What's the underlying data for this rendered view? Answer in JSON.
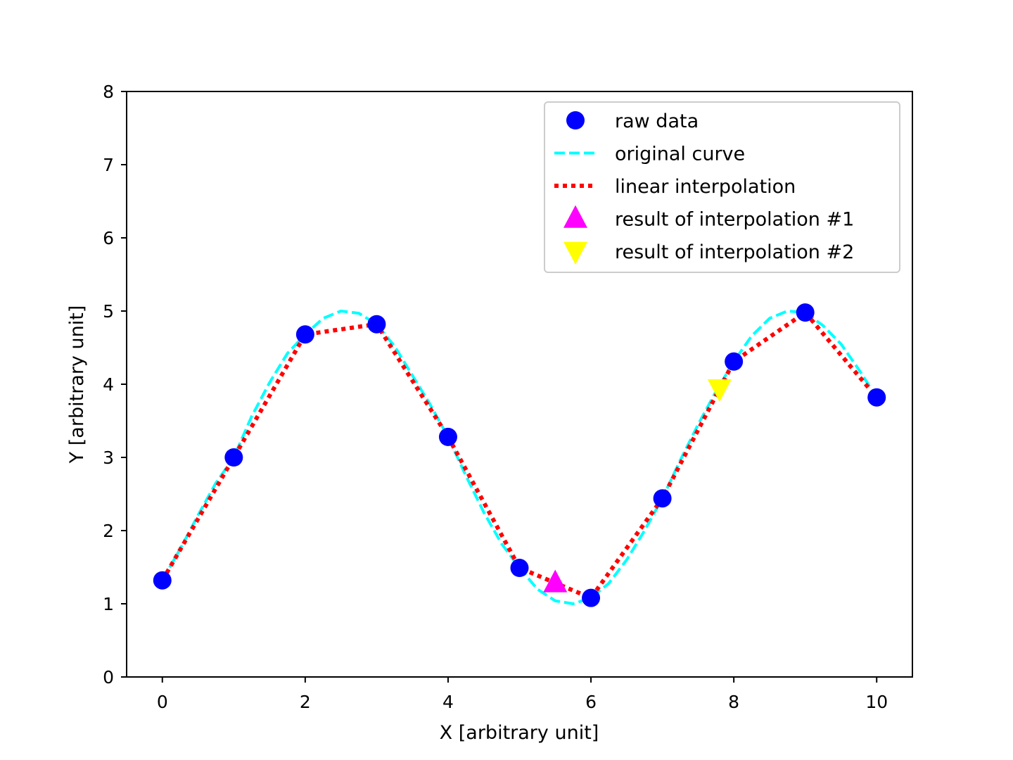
{
  "chart_data": {
    "type": "line",
    "title": "",
    "xlabel": "X [arbitrary unit]",
    "ylabel": "Y [arbitrary unit]",
    "xlim": [
      -0.5,
      10.5
    ],
    "ylim": [
      0,
      8
    ],
    "x_ticks": [
      0,
      2,
      4,
      6,
      8,
      10
    ],
    "y_ticks": [
      0,
      1,
      2,
      3,
      4,
      5,
      6,
      7,
      8
    ],
    "grid": false,
    "legend_position": "top-right",
    "series": [
      {
        "name": "raw data",
        "style": "markers",
        "marker": "circle",
        "color": "#0000ff",
        "x": [
          0,
          1,
          2,
          3,
          4,
          5,
          6,
          7,
          8,
          9,
          10
        ],
        "y": [
          1.32,
          3.0,
          4.68,
          4.82,
          3.28,
          1.49,
          1.08,
          2.44,
          4.31,
          4.98,
          3.82
        ]
      },
      {
        "name": "original curve",
        "style": "dashed-line",
        "color": "#00ffff",
        "function": "3 + 2*sin(1.7*(x-2.55)+pi/2)... sampled",
        "x": [
          0,
          0.25,
          0.5,
          0.75,
          1,
          1.25,
          1.5,
          1.75,
          2,
          2.25,
          2.5,
          2.75,
          3,
          3.25,
          3.5,
          3.75,
          4,
          4.25,
          4.5,
          4.75,
          5,
          5.25,
          5.5,
          5.75,
          6,
          6.25,
          6.5,
          6.75,
          7,
          7.25,
          7.5,
          7.75,
          8,
          8.25,
          8.5,
          8.75,
          9,
          9.25,
          9.5,
          9.75,
          10
        ],
        "y": [
          1.32,
          1.75,
          2.21,
          2.65,
          3.0,
          3.56,
          4.02,
          4.42,
          4.68,
          4.9,
          5.0,
          4.97,
          4.82,
          4.52,
          4.12,
          3.72,
          3.28,
          2.75,
          2.25,
          1.82,
          1.49,
          1.2,
          1.04,
          1.0,
          1.08,
          1.28,
          1.6,
          2.0,
          2.44,
          2.96,
          3.45,
          3.9,
          4.31,
          4.66,
          4.9,
          5.0,
          4.98,
          4.8,
          4.55,
          4.2,
          3.82
        ]
      },
      {
        "name": "linear interpolation",
        "style": "dotted-line",
        "color": "#ff0000",
        "x": [
          0,
          1,
          2,
          3,
          4,
          5,
          6,
          7,
          8,
          9,
          10
        ],
        "y": [
          1.32,
          3.0,
          4.68,
          4.82,
          3.28,
          1.49,
          1.08,
          2.44,
          4.31,
          4.98,
          3.82
        ]
      },
      {
        "name": "result of interpolation #1",
        "style": "markers",
        "marker": "triangle-up",
        "color": "#ff00ff",
        "x": [
          5.5
        ],
        "y": [
          1.285
        ]
      },
      {
        "name": "result of interpolation #2",
        "style": "markers",
        "marker": "triangle-down",
        "color": "#ffff00",
        "x": [
          7.8
        ],
        "y": [
          3.94
        ]
      }
    ]
  }
}
